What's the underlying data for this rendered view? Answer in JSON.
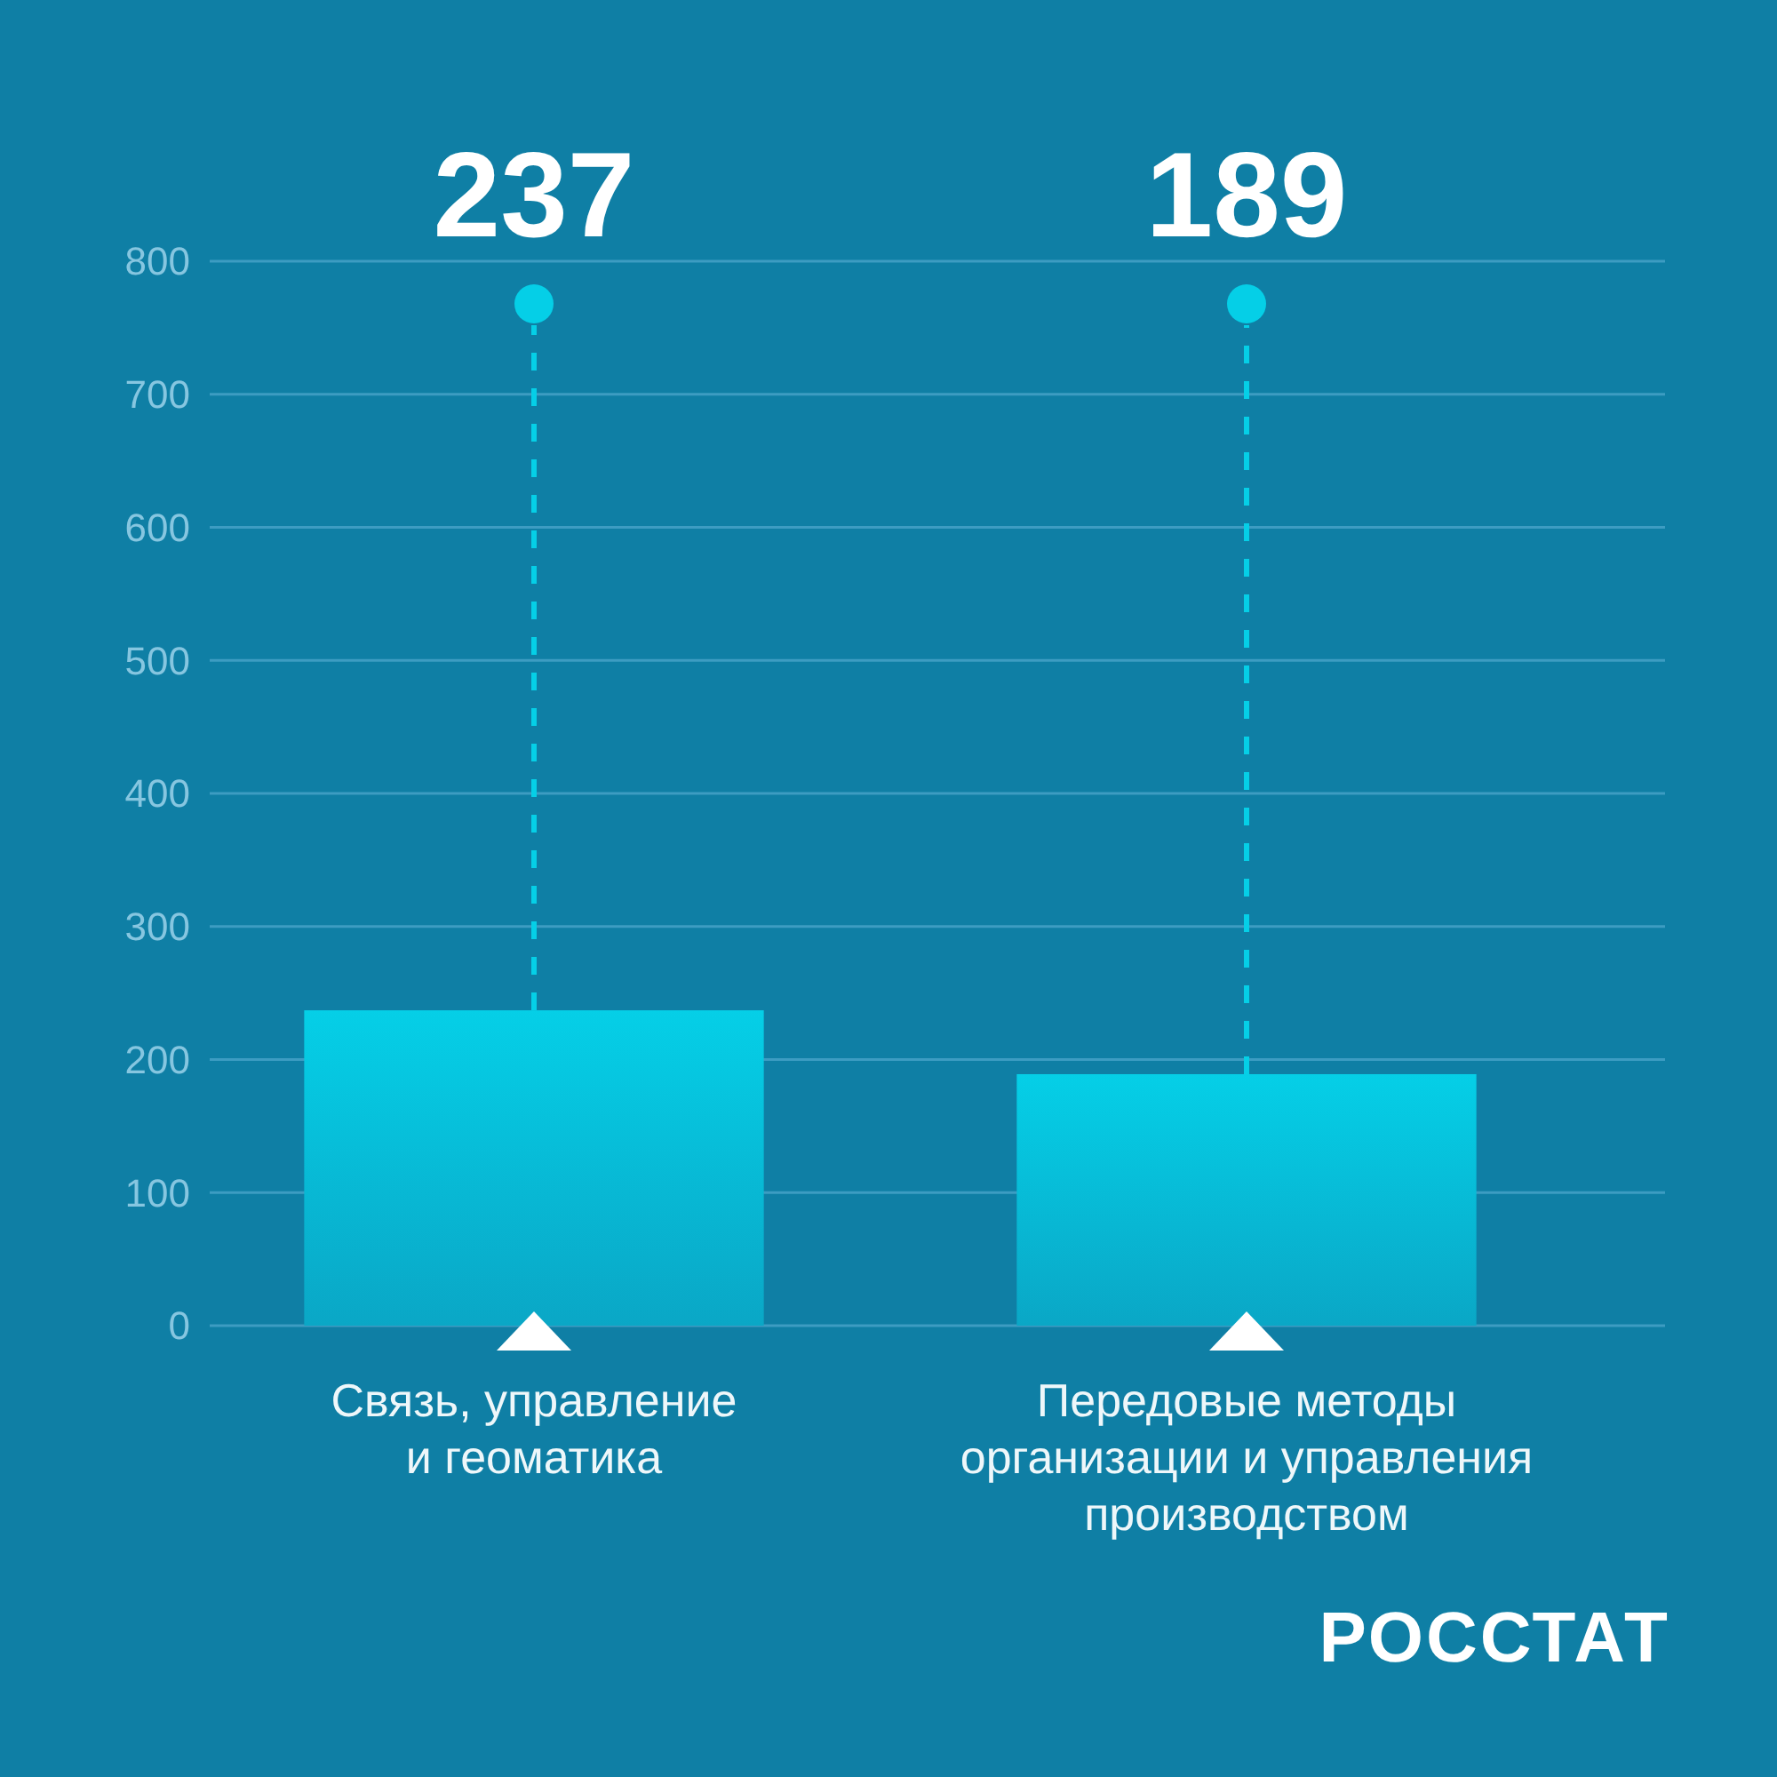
{
  "chart_data": {
    "type": "bar",
    "categories": [
      "Связь, управление и геоматика",
      "Передовые методы организации и управления производством"
    ],
    "values": [
      237,
      189
    ],
    "color": "#05cfe7",
    "ylim": [
      0,
      800
    ],
    "yticks": [
      0,
      100,
      200,
      300,
      400,
      500,
      600,
      700,
      800
    ],
    "grid": "y",
    "annotations": [
      "237",
      "189",
      "РОССТАТ"
    ]
  }
}
